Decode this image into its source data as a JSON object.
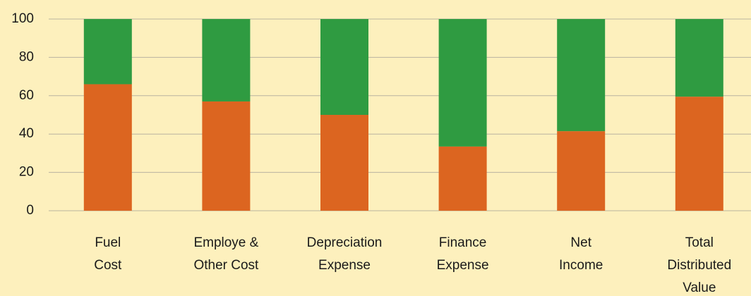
{
  "chart_data": {
    "type": "stacked_bar",
    "categories": [
      [
        "Fuel",
        "Cost"
      ],
      [
        "Employe &",
        "Other Cost"
      ],
      [
        "Depreciation",
        "Expense"
      ],
      [
        "Finance",
        "Expense"
      ],
      [
        "Net",
        "Income"
      ],
      [
        "Total",
        "Distributed",
        "Value"
      ]
    ],
    "series": [
      {
        "color": "#dc6520",
        "values": [
          66,
          57,
          50,
          33.5,
          41.5,
          59.5
        ]
      },
      {
        "color": "#2f9b41",
        "values": [
          34,
          43,
          50,
          66.5,
          58.5,
          40.5
        ]
      }
    ],
    "ylim": [
      0,
      100
    ],
    "yticks": [
      0,
      20,
      40,
      60,
      80,
      100
    ],
    "grid": true
  }
}
